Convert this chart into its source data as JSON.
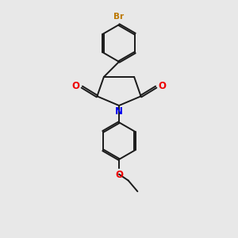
{
  "bg_color": "#e8e8e8",
  "bond_color": "#1a1a1a",
  "N_color": "#0000ee",
  "O_color": "#ee0000",
  "Br_color": "#bb7700",
  "lw": 1.4,
  "dbo": 0.055,
  "xlim": [
    0,
    10
  ],
  "ylim": [
    0,
    14
  ]
}
